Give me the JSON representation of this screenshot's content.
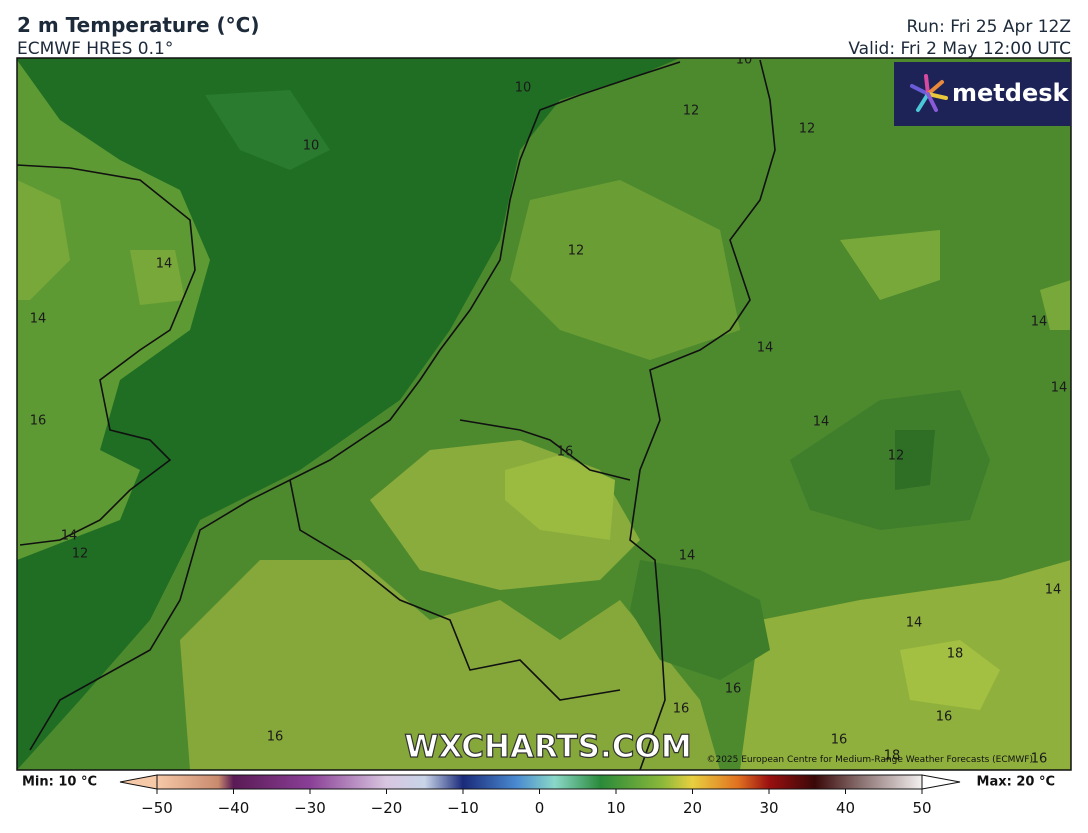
{
  "header": {
    "title": "2 m Temperature (°C)",
    "subtitle": "ECMWF HRES 0.1°",
    "run": "Run: Fri 25 Apr 12Z",
    "valid": "Valid: Fri 2 May 12:00 UTC"
  },
  "logo": "metdesk",
  "watermark": "WXCHARTS.COM",
  "copyright": "©2025 European Centre for Medium-Range Weather Forecasts (ECMWF)",
  "contour_labels": [
    "10",
    "10",
    "10",
    "12",
    "12",
    "12",
    "14",
    "14",
    "14",
    "14",
    "14",
    "16",
    "14",
    "16",
    "12",
    "14",
    "12",
    "14",
    "14",
    "14",
    "18",
    "16",
    "16",
    "16",
    "16",
    "16",
    "18",
    "16"
  ],
  "colorbar": {
    "min_label": "Min: 10 °C",
    "max_label": "Max: 20 °C",
    "lim": [
      -50,
      50
    ],
    "ticks": [
      {
        "value": -50,
        "label": "−50"
      },
      {
        "value": -40,
        "label": "−40"
      },
      {
        "value": -30,
        "label": "−30"
      },
      {
        "value": -20,
        "label": "−20"
      },
      {
        "value": -10,
        "label": "−10"
      },
      0,
      10,
      20,
      30,
      40,
      50
    ]
  }
}
